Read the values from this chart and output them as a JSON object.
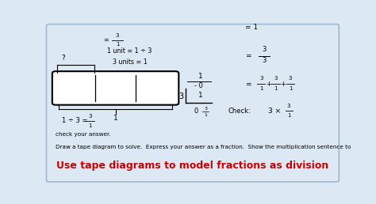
{
  "title": "Use tape diagrams to model fractions as division",
  "title_color": "#cc0000",
  "bg_color": "#dce9f5",
  "border_color": "#a0b8d0",
  "instruction_line1": "Draw a tape diagram to solve.  Express your answer as a fraction.  Show the multiplication sentence to",
  "instruction_line2": "check your answer."
}
